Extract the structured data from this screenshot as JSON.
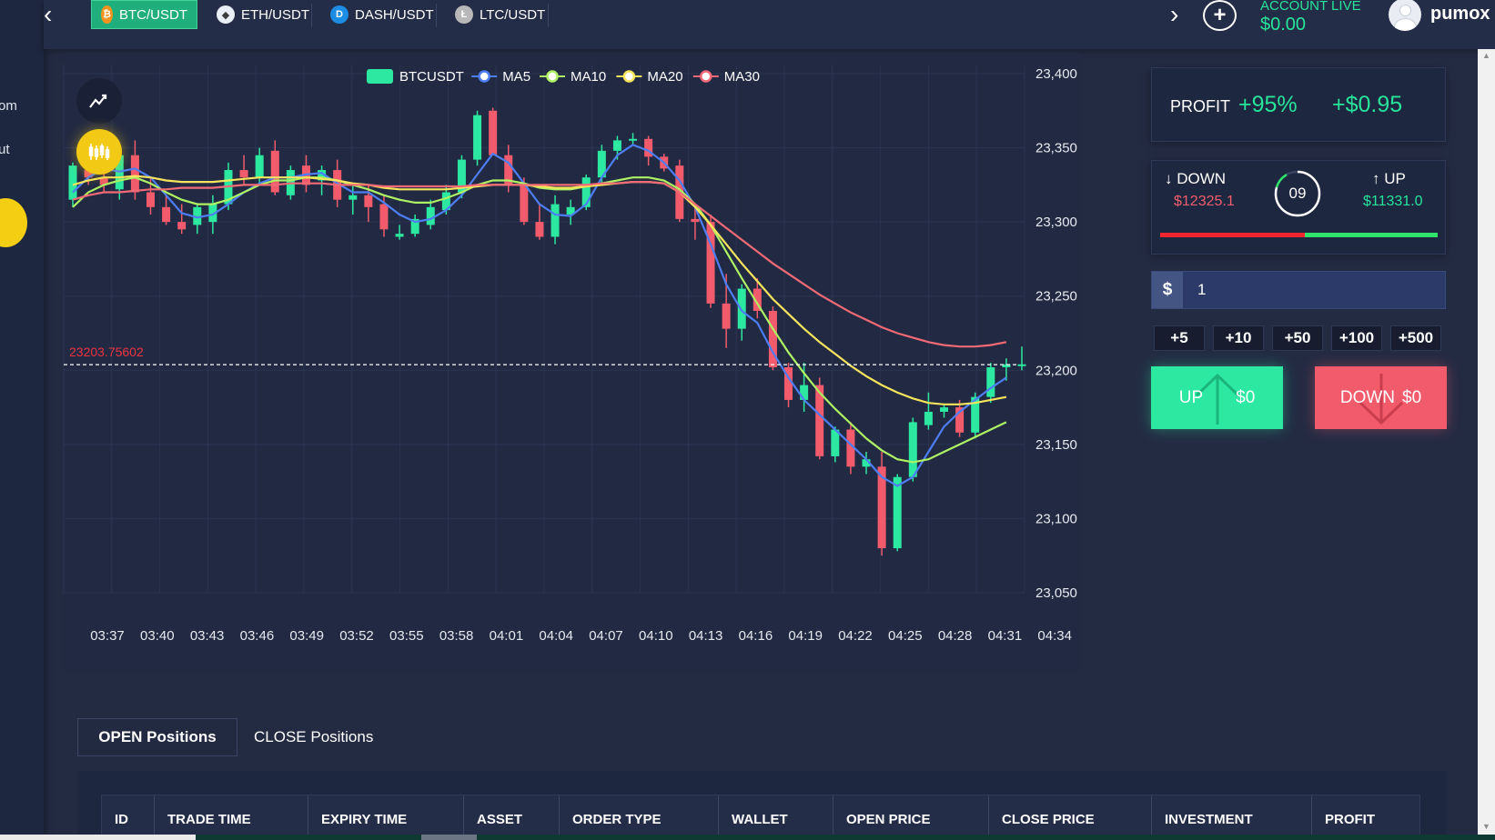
{
  "sidebar": {
    "items": [
      "om",
      "ut"
    ]
  },
  "topbar": {
    "tabs": [
      {
        "label": "BTC/USDT",
        "icon": "bitcoin-icon",
        "active": true
      },
      {
        "label": "ETH/USDT",
        "icon": "ethereum-icon",
        "active": false
      },
      {
        "label": "DASH/USDT",
        "icon": "dash-icon",
        "active": false
      },
      {
        "label": "LTC/USDT",
        "icon": "litecoin-icon",
        "active": false
      }
    ],
    "account_label": "ACCOUNT LIVE",
    "account_balance": "$0.00",
    "username": "pumox"
  },
  "chart_data": {
    "type": "line",
    "title": "",
    "xlabel": "",
    "ylabel": "",
    "legend": [
      "BTCUSDT",
      "MA5",
      "MA10",
      "MA20",
      "MA30"
    ],
    "legend_position": "top-center",
    "colors": {
      "BTCUSDT_up": "#2ce8a1",
      "BTCUSDT_down": "#f25b6b",
      "MA5": "#4d7ef5",
      "MA10": "#aef263",
      "MA20": "#f6e45c",
      "MA30": "#f16a76"
    },
    "x_ticks": [
      "03:37",
      "03:40",
      "03:43",
      "03:46",
      "03:49",
      "03:52",
      "03:55",
      "03:58",
      "04:01",
      "04:04",
      "04:07",
      "04:10",
      "04:13",
      "04:16",
      "04:19",
      "04:22",
      "04:25",
      "04:28",
      "04:31",
      "04:34"
    ],
    "y_ticks": [
      "23,400",
      "23,350",
      "23,300",
      "23,250",
      "23,200",
      "23,150",
      "23,100",
      "23,050"
    ],
    "ylim": [
      23050,
      23400
    ],
    "current_price": "23203.75602",
    "candles": [
      [
        23315,
        23340,
        23310,
        23338
      ],
      [
        23335,
        23345,
        23325,
        23330
      ],
      [
        23330,
        23345,
        23320,
        23325
      ],
      [
        23322,
        23348,
        23315,
        23345
      ],
      [
        23345,
        23355,
        23315,
        23320
      ],
      [
        23320,
        23330,
        23305,
        23310
      ],
      [
        23310,
        23318,
        23298,
        23300
      ],
      [
        23300,
        23312,
        23292,
        23295
      ],
      [
        23298,
        23312,
        23292,
        23310
      ],
      [
        23300,
        23318,
        23292,
        23312
      ],
      [
        23312,
        23340,
        23308,
        23335
      ],
      [
        23335,
        23345,
        23325,
        23330
      ],
      [
        23330,
        23350,
        23325,
        23345
      ],
      [
        23348,
        23355,
        23318,
        23320
      ],
      [
        23318,
        23338,
        23315,
        23335
      ],
      [
        23338,
        23345,
        23320,
        23325
      ],
      [
        23328,
        23338,
        23318,
        23335
      ],
      [
        23335,
        23342,
        23310,
        23315
      ],
      [
        23315,
        23325,
        23305,
        23318
      ],
      [
        23318,
        23325,
        23300,
        23310
      ],
      [
        23312,
        23318,
        23290,
        23295
      ],
      [
        23290,
        23298,
        23288,
        23292
      ],
      [
        23292,
        23305,
        23290,
        23302
      ],
      [
        23298,
        23315,
        23295,
        23310
      ],
      [
        23308,
        23325,
        23305,
        23320
      ],
      [
        23320,
        23345,
        23316,
        23342
      ],
      [
        23342,
        23375,
        23338,
        23372
      ],
      [
        23375,
        23377,
        23345,
        23345
      ],
      [
        23345,
        23352,
        23320,
        23325
      ],
      [
        23325,
        23330,
        23298,
        23300
      ],
      [
        23300,
        23312,
        23288,
        23290
      ],
      [
        23290,
        23318,
        23285,
        23312
      ],
      [
        23305,
        23315,
        23298,
        23310
      ],
      [
        23310,
        23332,
        23308,
        23330
      ],
      [
        23330,
        23352,
        23325,
        23348
      ],
      [
        23348,
        23358,
        23342,
        23355
      ],
      [
        23355,
        23360,
        23352,
        23356
      ],
      [
        23356,
        23358,
        23338,
        23344
      ],
      [
        23344,
        23346,
        23334,
        23336
      ],
      [
        23338,
        23342,
        23300,
        23302
      ],
      [
        23302,
        23310,
        23288,
        23300
      ],
      [
        23300,
        23305,
        23242,
        23245
      ],
      [
        23245,
        23265,
        23215,
        23228
      ],
      [
        23228,
        23258,
        23220,
        23255
      ],
      [
        23255,
        23262,
        23235,
        23240
      ],
      [
        23240,
        23243,
        23200,
        23202
      ],
      [
        23202,
        23205,
        23175,
        23180
      ],
      [
        23180,
        23205,
        23172,
        23190
      ],
      [
        23190,
        23195,
        23140,
        23142
      ],
      [
        23142,
        23162,
        23138,
        23160
      ],
      [
        23160,
        23165,
        23130,
        23135
      ],
      [
        23135,
        23145,
        23130,
        23140
      ],
      [
        23135,
        23145,
        23075,
        23080
      ],
      [
        23080,
        23130,
        23078,
        23128
      ],
      [
        23128,
        23168,
        23125,
        23165
      ],
      [
        23163,
        23185,
        23160,
        23172
      ],
      [
        23172,
        23177,
        23168,
        23175
      ],
      [
        23175,
        23180,
        23155,
        23158
      ],
      [
        23158,
        23185,
        23154,
        23182
      ],
      [
        23182,
        23205,
        23178,
        23202
      ],
      [
        23202,
        23208,
        23193,
        23204
      ],
      [
        23203,
        23216,
        23200,
        23204
      ]
    ],
    "series": [
      {
        "name": "MA5",
        "values": [
          23320,
          23330,
          23336,
          23334,
          23336,
          23330,
          23318,
          23306,
          23303,
          23305,
          23312,
          23320,
          23326,
          23330,
          23330,
          23332,
          23333,
          23326,
          23320,
          23320,
          23313,
          23305,
          23300,
          23302,
          23308,
          23318,
          23332,
          23346,
          23340,
          23326,
          23312,
          23305,
          23304,
          23312,
          23330,
          23345,
          23352,
          23348,
          23340,
          23328,
          23310,
          23285,
          23258,
          23240,
          23232,
          23212,
          23195,
          23180,
          23170,
          23160,
          23150,
          23140,
          23128,
          23122,
          23128,
          23145,
          23162,
          23172,
          23180,
          23188,
          23195
        ]
      },
      {
        "name": "MA10",
        "values": [
          23310,
          23320,
          23325,
          23328,
          23330,
          23326,
          23320,
          23315,
          23312,
          23312,
          23315,
          23320,
          23325,
          23328,
          23328,
          23330,
          23330,
          23328,
          23325,
          23322,
          23318,
          23315,
          23313,
          23313,
          23316,
          23320,
          23325,
          23328,
          23328,
          23326,
          23323,
          23322,
          23322,
          23324,
          23326,
          23328,
          23330,
          23330,
          23328,
          23322,
          23312,
          23298,
          23280,
          23262,
          23245,
          23228,
          23212,
          23198,
          23185,
          23174,
          23164,
          23154,
          23146,
          23140,
          23138,
          23140,
          23145,
          23150,
          23155,
          23160,
          23165
        ]
      },
      {
        "name": "MA20",
        "values": [
          23325,
          23328,
          23330,
          23330,
          23331,
          23330,
          23328,
          23327,
          23327,
          23327,
          23328,
          23329,
          23330,
          23330,
          23330,
          23330,
          23329,
          23328,
          23326,
          23325,
          23323,
          23322,
          23322,
          23322,
          23322,
          23323,
          23324,
          23325,
          23325,
          23325,
          23324,
          23323,
          23323,
          23324,
          23325,
          23326,
          23327,
          23327,
          23326,
          23320,
          23310,
          23298,
          23285,
          23272,
          23260,
          23248,
          23238,
          23228,
          23219,
          23211,
          23203,
          23196,
          23190,
          23185,
          23181,
          23178,
          23177,
          23177,
          23178,
          23180,
          23182
        ]
      },
      {
        "name": "MA30",
        "values": [
          23315,
          23318,
          23320,
          23320,
          23321,
          23322,
          23322,
          23323,
          23323,
          23323,
          23324,
          23325,
          23325,
          23325,
          23326,
          23326,
          23326,
          23325,
          23325,
          23325,
          23324,
          23324,
          23324,
          23324,
          23324,
          23324,
          23325,
          23325,
          23325,
          23325,
          23325,
          23325,
          23325,
          23325,
          23326,
          23326,
          23327,
          23327,
          23326,
          23320,
          23312,
          23304,
          23296,
          23288,
          23280,
          23272,
          23265,
          23258,
          23251,
          23245,
          23239,
          23234,
          23229,
          23225,
          23222,
          23219,
          23217,
          23216,
          23216,
          23217,
          23219
        ]
      }
    ]
  },
  "profit": {
    "label": "PROFIT",
    "percent": "+95%",
    "amount": "+$0.95"
  },
  "updown": {
    "down_label": "DOWN",
    "down_value": "$12325.1",
    "up_label": "UP",
    "up_value": "$11331.0",
    "timer": "09",
    "down_ratio": 0.52
  },
  "amount": {
    "currency": "$",
    "value": "1"
  },
  "quick_amounts": [
    "+5",
    "+10",
    "+50",
    "+100",
    "+500"
  ],
  "buttons": {
    "up_label": "UP",
    "up_amount": "$0",
    "down_label": "DOWN",
    "down_amount": "$0"
  },
  "positions": {
    "tabs": [
      "OPEN Positions",
      "CLOSE Positions"
    ],
    "columns": [
      "ID",
      "TRADE TIME",
      "EXPIRY TIME",
      "ASSET",
      "ORDER TYPE",
      "WALLET",
      "OPEN PRICE",
      "CLOSE PRICE",
      "INVESTMENT",
      "PROFIT"
    ]
  }
}
